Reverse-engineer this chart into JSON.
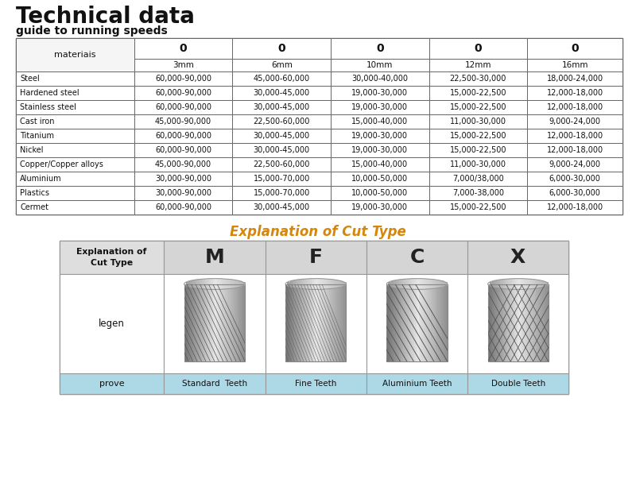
{
  "title": "Technical data",
  "subtitle": "guide to running speeds",
  "table1_header_row1": [
    "materiais",
    "0",
    "0",
    "0",
    "0",
    "0"
  ],
  "table1_header_row2": [
    "",
    "3mm",
    "6mm",
    "10mm",
    "12mm",
    "16mm"
  ],
  "table1_rows": [
    [
      "Steel",
      "60,000-90,000",
      "45,000-60,000",
      "30,000-40,000",
      "22,500-30,000",
      "18,000-24,000"
    ],
    [
      "Hardened steel",
      "60,000-90,000",
      "30,000-45,000",
      "19,000-30,000",
      "15,000-22,500",
      "12,000-18,000"
    ],
    [
      "Stainless steel",
      "60,000-90,000",
      "30,000-45,000",
      "19,000-30,000",
      "15,000-22,500",
      "12,000-18,000"
    ],
    [
      "Cast iron",
      "45,000-90,000",
      "22,500-60,000",
      "15,000-40,000",
      "11,000-30,000",
      "9,000-24,000"
    ],
    [
      "Titanium",
      "60,000-90,000",
      "30,000-45,000",
      "19,000-30,000",
      "15,000-22,500",
      "12,000-18,000"
    ],
    [
      "Nickel",
      "60,000-90,000",
      "30,000-45,000",
      "19,000-30,000",
      "15,000-22,500",
      "12,000-18,000"
    ],
    [
      "Copper/Copper alloys",
      "45,000-90,000",
      "22,500-60,000",
      "15,000-40,000",
      "11,000-30,000",
      "9,000-24,000"
    ],
    [
      "Aluminium",
      "30,000-90,000",
      "15,000-70,000",
      "10,000-50,000",
      "7,000/38,000",
      "6,000-30,000"
    ],
    [
      "Plastics",
      "30,000-90,000",
      "15,000-70,000",
      "10,000-50,000",
      "7,000-38,000",
      "6,000-30,000"
    ],
    [
      "Cermet",
      "60,000-90,000",
      "30,000-45,000",
      "19,000-30,000",
      "15,000-22,500",
      "12,000-18,000"
    ]
  ],
  "explanation_title": "Explanation of Cut Type",
  "table2_header_labels": [
    "M",
    "F",
    "C",
    "X"
  ],
  "table2_row1_label": "legen",
  "table2_row2": [
    "prove",
    "Standard  Teeth",
    "Fine Teeth",
    "Aluminium Teeth",
    "Double Teeth"
  ],
  "bg_color": "#ffffff",
  "explanation_title_color": "#d4870a",
  "bottom_row_bg": "#add8e6"
}
